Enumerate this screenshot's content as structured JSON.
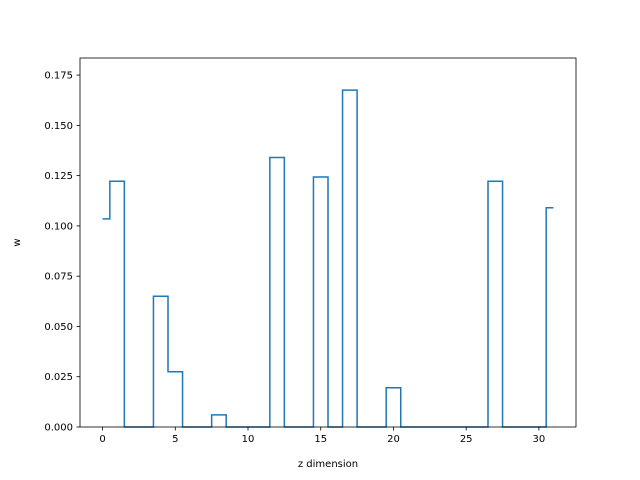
{
  "chart_data": {
    "type": "line",
    "drawstyle": "steps-mid",
    "xlabel": "z dimension",
    "ylabel": "w",
    "xlim": [
      -1.55,
      32.55
    ],
    "ylim": [
      0,
      0.1835
    ],
    "xticks": [
      0,
      5,
      10,
      15,
      20,
      25,
      30
    ],
    "yticks": [
      0.0,
      0.025,
      0.05,
      0.075,
      0.1,
      0.125,
      0.15,
      0.175
    ],
    "ytick_labels": [
      "0.000",
      "0.025",
      "0.050",
      "0.075",
      "0.100",
      "0.125",
      "0.150",
      "0.175"
    ],
    "xtick_labels": [
      "0",
      "5",
      "10",
      "15",
      "20",
      "25",
      "30"
    ],
    "grid": false,
    "legend": "none",
    "line_color": "#1f77b4",
    "series": [
      {
        "x": [
          0,
          1,
          2,
          3,
          4,
          5,
          6,
          7,
          8,
          9,
          10,
          11,
          12,
          13,
          14,
          15,
          16,
          17,
          18,
          19,
          20,
          21,
          22,
          23,
          24,
          25,
          26,
          27,
          28,
          29,
          30,
          31
        ],
        "values": [
          0.1035,
          0.1222,
          0,
          0,
          0.065,
          0.0275,
          0,
          0,
          0.006,
          0,
          0,
          0,
          0.134,
          0,
          0,
          0.1243,
          0,
          0.1675,
          0,
          0,
          0.0195,
          0,
          0,
          0,
          0,
          0,
          0,
          0.1222,
          0,
          0,
          0,
          0.109
        ]
      }
    ]
  }
}
